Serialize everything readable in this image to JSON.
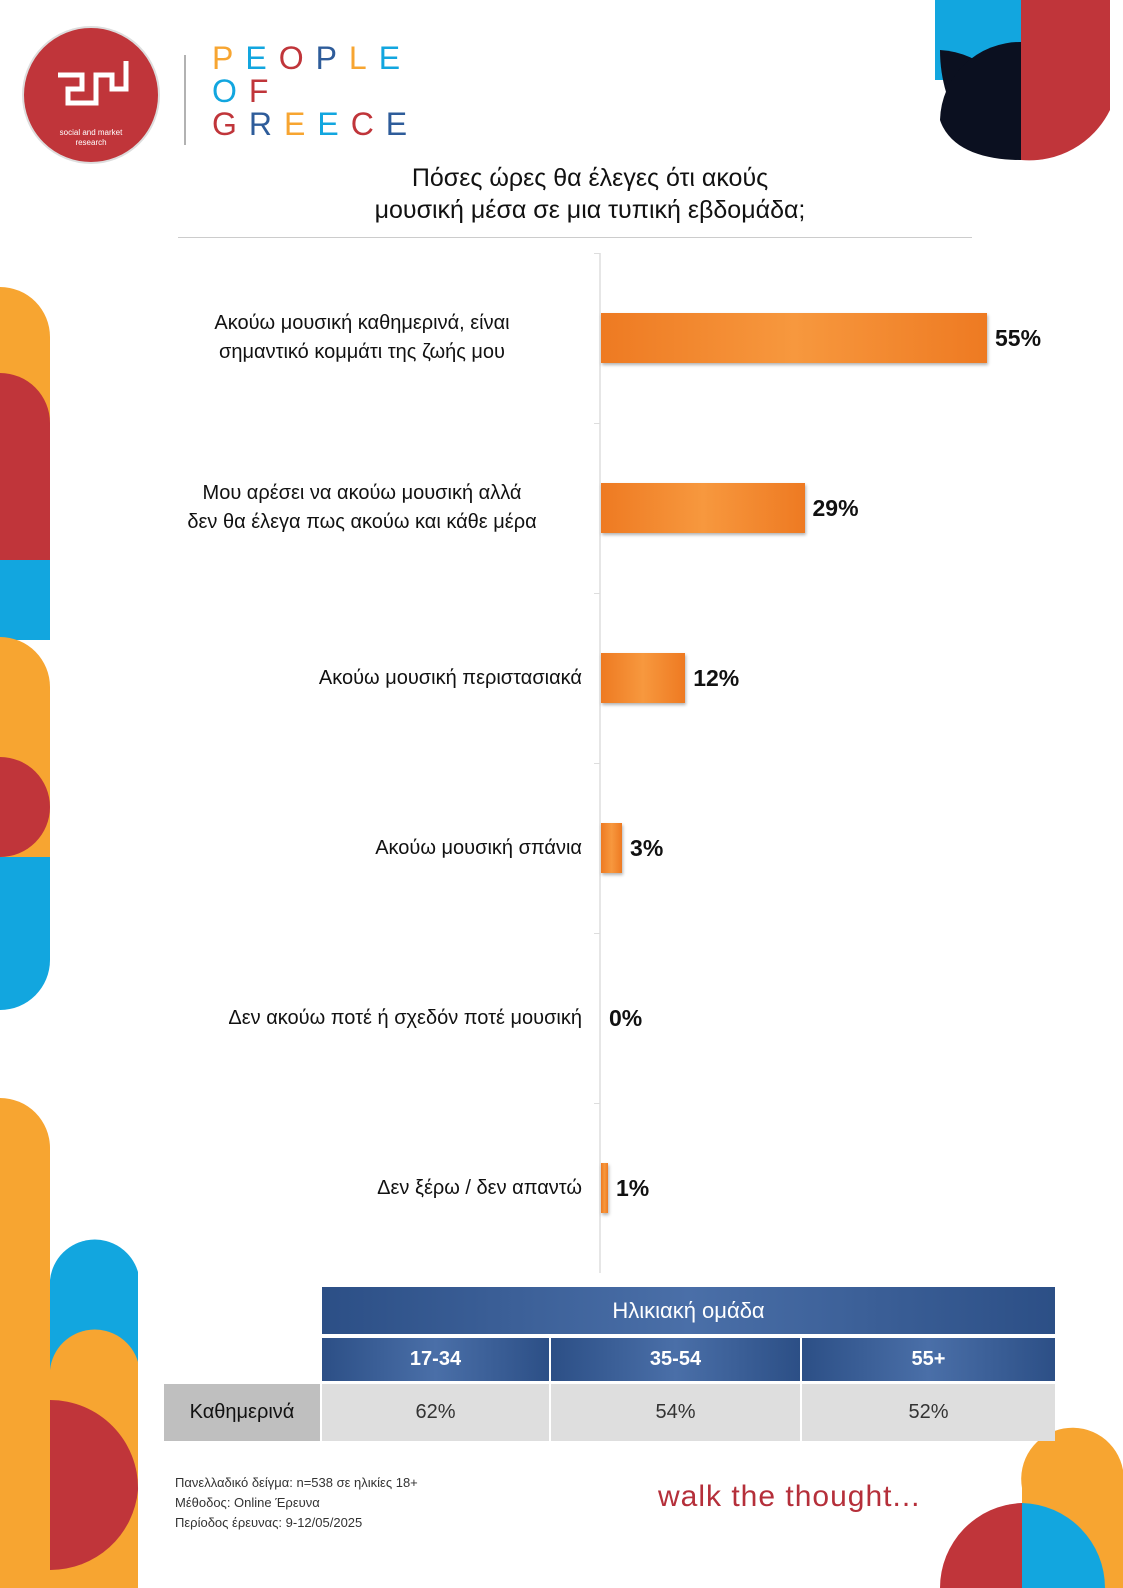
{
  "logo": {
    "caption": "social and market research"
  },
  "brand": [
    "PEOPLE",
    "OF",
    "GREECE"
  ],
  "chart_data": {
    "type": "bar",
    "title": "Πόσες ώρες θα έλεγες ότι ακούς μουσική μέσα σε μια τυπική εβδομάδα;",
    "categories": [
      "Ακούω μουσική καθημερινά, είναι σημαντικό κομμάτι της ζωής μου",
      "Μου αρέσει να ακούω μουσική αλλά δεν θα έλεγα πως ακούω και κάθε μέρα",
      "Ακούω μουσική περιστασιακά",
      "Ακούω μουσική σπάνια",
      "Δεν ακούω ποτέ ή σχεδόν ποτέ μουσική",
      "Δεν ξέρω / δεν απαντώ"
    ],
    "values": [
      55,
      29,
      12,
      3,
      0,
      1
    ],
    "value_labels": [
      "55%",
      "29%",
      "12%",
      "3%",
      "0%",
      "1%"
    ],
    "color": "#ee7a22"
  },
  "table": {
    "title": "Ηλικιακή ομάδα",
    "columns": [
      "17-34",
      "35-54",
      "55+"
    ],
    "rows": [
      {
        "label": "Καθημερινά",
        "cells": [
          "62%",
          "54%",
          "52%"
        ]
      }
    ]
  },
  "footer": {
    "notes": [
      "Πανελλαδικό δείγμα: n=538 σε ηλικίες 18+",
      "Μέθοδος: Online Έρευνα",
      "Περίοδος έρευνας: 9-12/05/2025"
    ],
    "slogan": "walk the thought..."
  }
}
